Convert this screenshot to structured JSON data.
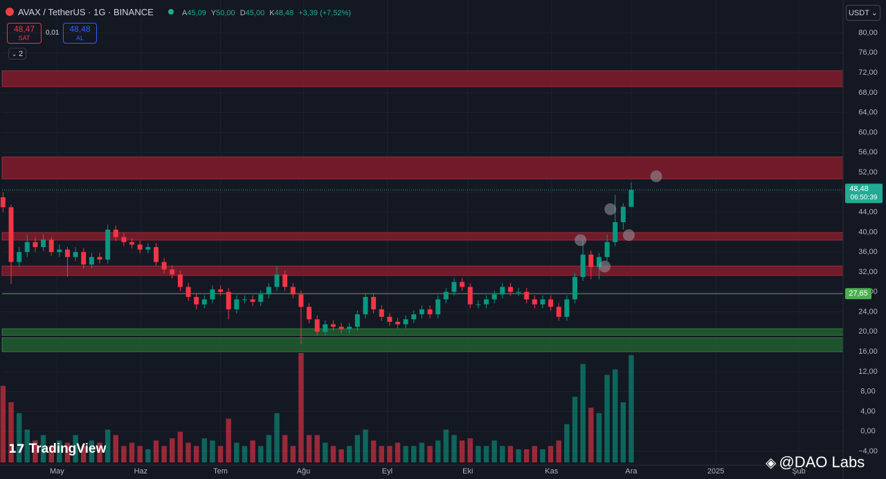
{
  "chart_data": {
    "type": "candlestick",
    "symbol": "AVAX / TetherUS · 1G · BINANCE",
    "ohlc_prefixes": [
      "A",
      "Y",
      "D",
      "K"
    ],
    "ohlc_labels": [
      "45,09",
      "50,00",
      "45,00",
      "48,48"
    ],
    "change": "+3,39 (+7,52%)",
    "currency": "USDT",
    "countdown": "06:50:39",
    "xlim": [
      -0.12,
      104.3
    ],
    "xticks": [
      {
        "value": 6.7,
        "label": "May"
      },
      {
        "value": 17.1,
        "label": "Haz"
      },
      {
        "value": 27,
        "label": "Tem"
      },
      {
        "value": 37.3,
        "label": "Ağu"
      },
      {
        "value": 47.7,
        "label": "Eyl"
      },
      {
        "value": 57.7,
        "label": "Eki"
      },
      {
        "value": 68.1,
        "label": "Kas"
      },
      {
        "value": 78,
        "label": "Ara"
      },
      {
        "value": 88.5,
        "label": "2025"
      },
      {
        "value": 98.8,
        "label": "Şub"
      }
    ],
    "ylim": [
      -6.5,
      86.6
    ],
    "yticks": [
      {
        "value": 80,
        "label": "80,00"
      },
      {
        "value": 76,
        "label": "76,00"
      },
      {
        "value": 72,
        "label": "72,00"
      },
      {
        "value": 68,
        "label": "68,00"
      },
      {
        "value": 64,
        "label": "64,00"
      },
      {
        "value": 60,
        "label": "60,00"
      },
      {
        "value": 56,
        "label": "56,00"
      },
      {
        "value": 52,
        "label": "52,00"
      },
      {
        "value": 48,
        "label": "48,00"
      },
      {
        "value": 44,
        "label": "44,00"
      },
      {
        "value": 40,
        "label": "40,00"
      },
      {
        "value": 36,
        "label": "36,00"
      },
      {
        "value": 32,
        "label": "32,00"
      },
      {
        "value": 28,
        "label": "28,00"
      },
      {
        "value": 24,
        "label": "24,00"
      },
      {
        "value": 20,
        "label": "20,00"
      },
      {
        "value": 16,
        "label": "16,00"
      },
      {
        "value": 12,
        "label": "12,00"
      },
      {
        "value": 8,
        "label": "8,00"
      },
      {
        "value": 4,
        "label": "4,00"
      },
      {
        "value": 0,
        "label": "0,00"
      },
      {
        "value": -4,
        "label": "−4,00"
      }
    ],
    "grid": true,
    "up_color": "#089981",
    "down_color": "#f23645",
    "candles": [
      [
        47,
        48,
        44,
        45
      ],
      [
        45,
        45.5,
        29.6,
        34
      ],
      [
        34,
        37,
        33,
        36
      ],
      [
        36,
        39.5,
        35,
        38
      ],
      [
        38,
        39,
        36,
        37
      ],
      [
        37,
        39.6,
        36.2,
        38.5
      ],
      [
        38.5,
        39,
        35.2,
        36
      ],
      [
        36,
        37.5,
        35,
        36.5
      ],
      [
        36.5,
        37,
        31,
        35
      ],
      [
        35,
        37,
        34.2,
        36
      ],
      [
        36,
        36.8,
        32.7,
        33.5
      ],
      [
        33.5,
        35.8,
        32.7,
        35
      ],
      [
        35,
        35.8,
        33.7,
        34.5
      ],
      [
        34.5,
        41.5,
        33.7,
        40.5
      ],
      [
        40.5,
        41.3,
        38.2,
        39
      ],
      [
        39,
        39.8,
        37.2,
        38
      ],
      [
        38,
        38.8,
        36.7,
        37.5
      ],
      [
        37.5,
        38.3,
        35.7,
        36.5
      ],
      [
        36.5,
        37.8,
        35.7,
        37
      ],
      [
        37,
        37.8,
        33.2,
        34
      ],
      [
        34,
        34.8,
        31.7,
        32.5
      ],
      [
        32.5,
        33.3,
        30.7,
        31.5
      ],
      [
        31.5,
        32.3,
        28.2,
        29
      ],
      [
        29,
        29.8,
        26.2,
        27
      ],
      [
        27,
        27.8,
        24.5,
        25.5
      ],
      [
        25.5,
        27.3,
        24.7,
        26.5
      ],
      [
        26.5,
        29.3,
        25.7,
        28.5
      ],
      [
        28.5,
        29.3,
        27.2,
        28
      ],
      [
        28,
        28.8,
        22.5,
        24.5
      ],
      [
        24.5,
        27.3,
        23.7,
        26.5
      ],
      [
        26.5,
        27.3,
        25.7,
        26.5
      ],
      [
        26.5,
        27.3,
        25.2,
        26
      ],
      [
        26,
        28.3,
        25.2,
        27.5
      ],
      [
        27.5,
        29.8,
        26.7,
        29
      ],
      [
        29,
        33.2,
        28.2,
        31.5
      ],
      [
        31.5,
        32.3,
        28.2,
        29
      ],
      [
        29,
        29.8,
        26.7,
        27.5
      ],
      [
        27.5,
        28.3,
        17.5,
        25
      ],
      [
        25,
        25.8,
        21.7,
        22.5
      ],
      [
        22.5,
        23.3,
        19.2,
        20
      ],
      [
        20,
        22.3,
        19.2,
        21.5
      ],
      [
        21.5,
        22.3,
        20.2,
        21
      ],
      [
        21,
        21.8,
        19.7,
        20.5
      ],
      [
        20.5,
        21.8,
        19.7,
        21
      ],
      [
        21,
        24.3,
        20.2,
        23.5
      ],
      [
        23.5,
        27.8,
        22.7,
        27
      ],
      [
        27,
        27.8,
        23.7,
        24.5
      ],
      [
        24.5,
        25.3,
        22.2,
        23
      ],
      [
        23,
        23.8,
        21.2,
        22
      ],
      [
        22,
        22.8,
        20.7,
        21.5
      ],
      [
        21.5,
        23.3,
        20.7,
        22.5
      ],
      [
        22.5,
        24.3,
        21.7,
        23.5
      ],
      [
        23.5,
        25.3,
        22.7,
        24.5
      ],
      [
        24.5,
        25.3,
        22.7,
        23.5
      ],
      [
        23.5,
        27.3,
        22.7,
        26.5
      ],
      [
        26.5,
        28.8,
        25.7,
        28
      ],
      [
        28,
        30.8,
        27.2,
        30
      ],
      [
        30,
        30.8,
        28.2,
        29
      ],
      [
        29,
        29.8,
        24.7,
        25.5
      ],
      [
        25.5,
        26.3,
        24.7,
        25.5
      ],
      [
        25.5,
        27.3,
        24.7,
        26.5
      ],
      [
        26.5,
        28.3,
        25.7,
        27.5
      ],
      [
        27.5,
        29.8,
        26.7,
        29
      ],
      [
        29,
        29.8,
        27.2,
        28
      ],
      [
        28,
        28.8,
        27.2,
        28
      ],
      [
        28,
        28.8,
        25.7,
        26.5
      ],
      [
        26.5,
        27.3,
        24.7,
        25.5
      ],
      [
        25.5,
        27.3,
        24.7,
        26.5
      ],
      [
        26.5,
        27.3,
        24.2,
        25
      ],
      [
        25,
        25.8,
        22.2,
        23
      ],
      [
        23,
        27.3,
        22.2,
        26.5
      ],
      [
        26.5,
        31.8,
        25.7,
        31
      ],
      [
        31,
        38.5,
        30.2,
        35.5
      ],
      [
        35.5,
        36.3,
        30.5,
        33
      ],
      [
        33,
        35.8,
        30.5,
        35
      ],
      [
        35,
        39.5,
        34.2,
        38
      ],
      [
        38,
        47.5,
        37.2,
        42
      ],
      [
        42,
        45.8,
        40.5,
        45.09
      ],
      [
        45.09,
        50,
        45,
        48.48
      ]
    ],
    "volume": [
      70,
      55,
      45,
      30,
      20,
      25,
      15,
      20,
      18,
      25,
      15,
      20,
      18,
      30,
      25,
      15,
      18,
      15,
      12,
      20,
      15,
      22,
      28,
      18,
      15,
      22,
      20,
      15,
      40,
      18,
      15,
      20,
      15,
      25,
      45,
      25,
      15,
      100,
      25,
      25,
      18,
      15,
      12,
      15,
      25,
      30,
      20,
      15,
      15,
      18,
      15,
      15,
      18,
      15,
      20,
      30,
      25,
      20,
      22,
      15,
      15,
      20,
      15,
      15,
      12,
      12,
      15,
      12,
      15,
      20,
      35,
      60,
      90,
      50,
      45,
      80,
      85,
      55,
      98
    ],
    "zones": [
      {
        "from": 69.2,
        "to": 72.4,
        "color": "#7b1c2b"
      },
      {
        "from": 50.7,
        "to": 55.1,
        "color": "#7b1c2b"
      },
      {
        "from": 38.4,
        "to": 39.9,
        "color": "#7b1c2b"
      },
      {
        "from": 31.3,
        "to": 33.2,
        "color": "#7b1c2b"
      },
      {
        "from": 19.3,
        "to": 20.6,
        "color": "#1f5a30"
      },
      {
        "from": 16,
        "to": 18.8,
        "color": "#1f5a30"
      }
    ],
    "hline": {
      "value": 27.65,
      "label": "27,65",
      "color": "#4caf50"
    },
    "markers": [
      {
        "x": 71.7,
        "y": 38.4
      },
      {
        "x": 75.4,
        "y": 44.6
      },
      {
        "x": 77.7,
        "y": 39.4
      },
      {
        "x": 74.7,
        "y": 33.1
      },
      {
        "x": 81.1,
        "y": 51.2
      }
    ]
  },
  "trade_panel": {
    "sell_price": "48,47",
    "sell": "SAT",
    "spread": "0,01",
    "buy_price": "48,48",
    "buy": "AL"
  },
  "indicator_count": "2",
  "branding": {
    "logo": "TradingView",
    "watermark": "@DAO Labs"
  }
}
